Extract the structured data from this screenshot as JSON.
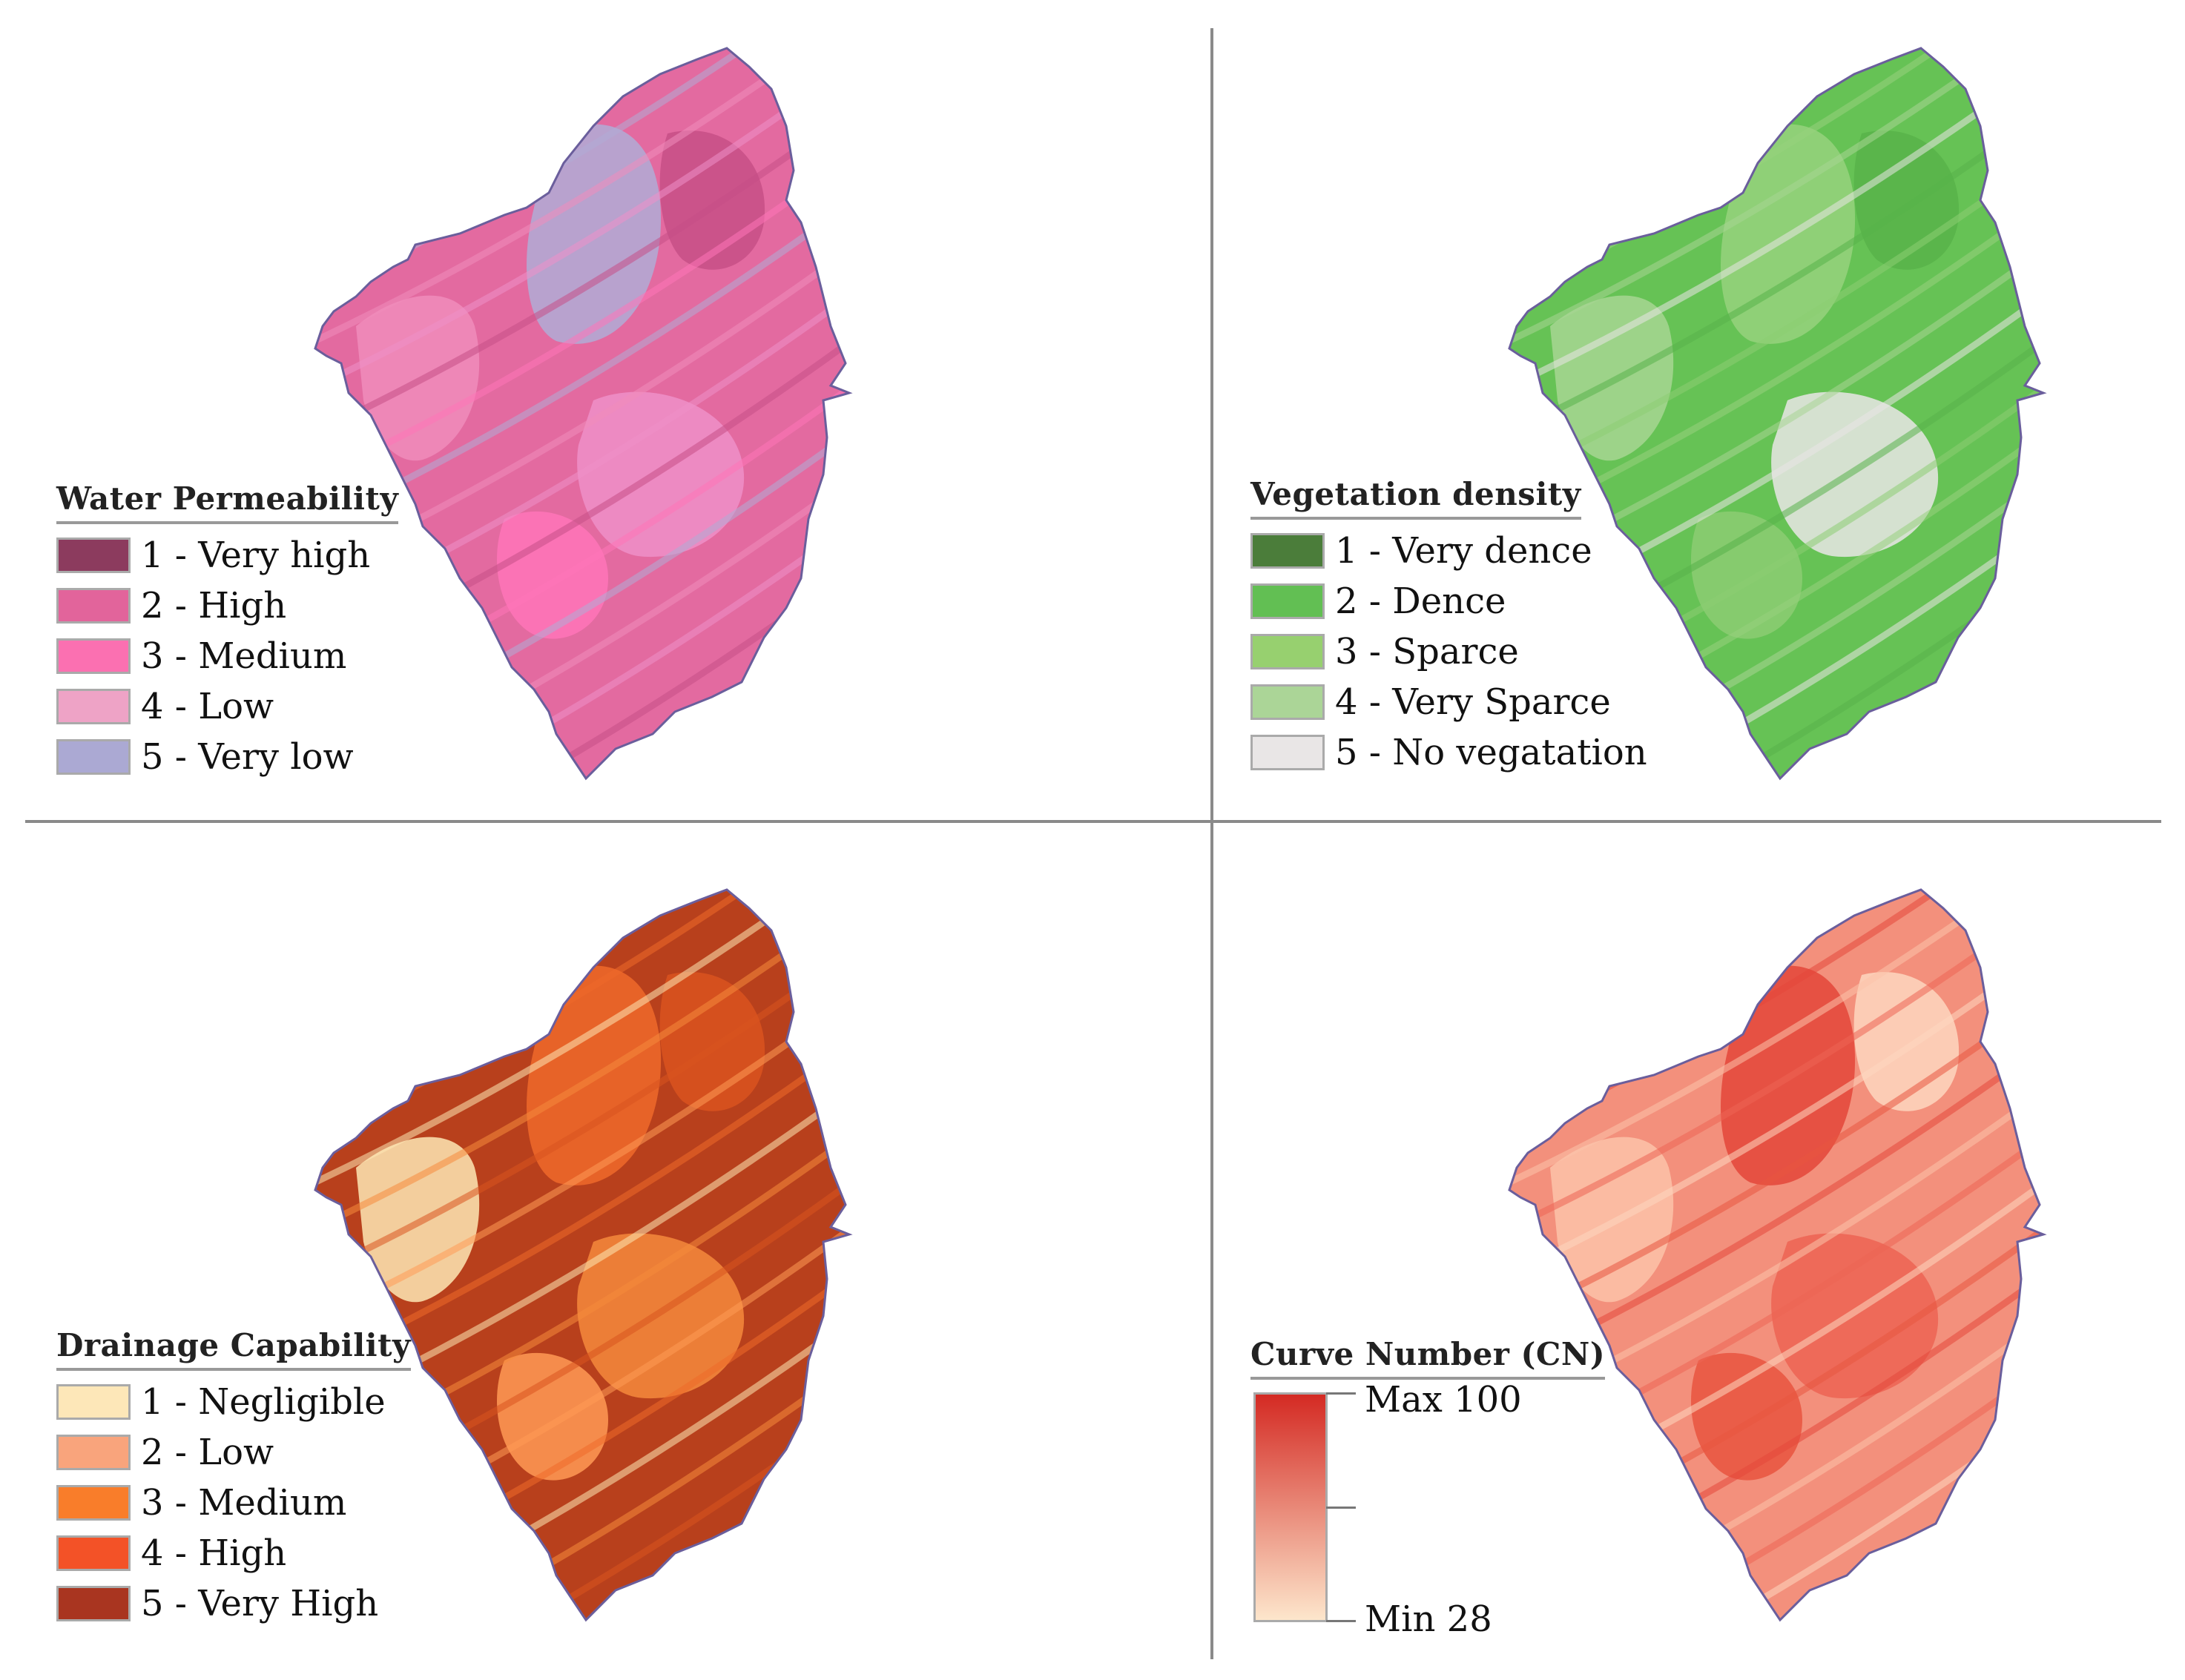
{
  "panels": [
    {
      "title": "Water Permeability",
      "fill": "#e36aa0",
      "patches": [
        "#b0abd6",
        "#f08cbb",
        "#ef8fc8",
        "#c74f86",
        "#ff74b8"
      ],
      "classes": [
        {
          "label": "1 - Very high",
          "color": "#8c3b5e"
        },
        {
          "label": "2 - High",
          "color": "#e2649b"
        },
        {
          "label": "3 - Medium",
          "color": "#fb70b1"
        },
        {
          "label": "4 - Low",
          "color": "#eea3c6"
        },
        {
          "label": "5 - Very low",
          "color": "#aba9d3"
        }
      ]
    },
    {
      "title": "Vegetation density",
      "fill": "#66c255",
      "patches": [
        "#97d27e",
        "#a7d693",
        "#e9e6e6",
        "#58b34a",
        "#8ccd73"
      ],
      "classes": [
        {
          "label": "1 - Very dence",
          "color": "#4b7d3a"
        },
        {
          "label": "2 - Dence",
          "color": "#62bf53"
        },
        {
          "label": "3 - Sparce",
          "color": "#97d06f"
        },
        {
          "label": "4 - Very Sparce",
          "color": "#abd597"
        },
        {
          "label": "5 - No vegatation",
          "color": "#e9e6e6"
        }
      ]
    },
    {
      "title": "Drainage Capability",
      "fill": "#b8401c",
      "patches": [
        "#ef6a2a",
        "#fde7b4",
        "#f58a3c",
        "#d9531f",
        "#ff9a55"
      ],
      "classes": [
        {
          "label": "1 - Negligible",
          "color": "#fde7b8"
        },
        {
          "label": "2 - Low",
          "color": "#f9a47c"
        },
        {
          "label": "3 - Medium",
          "color": "#f97d2a"
        },
        {
          "label": "4 - High",
          "color": "#f35227"
        },
        {
          "label": "5 - Very High",
          "color": "#a93520"
        }
      ]
    }
  ],
  "curve_number": {
    "title": "Curve Number (CN)",
    "fill": "#f3907c",
    "patches": [
      "#e3473a",
      "#fbc3a9",
      "#ec6453",
      "#fdd7c0",
      "#e8553f"
    ],
    "max_label": "Max 100",
    "min_label": "Min 28",
    "max_value": 100,
    "min_value": 28,
    "max_color": "#d42a23",
    "min_color": "#fde6cc"
  },
  "outline_color": "#6a5e9c",
  "divider_color": "#8a8a8a"
}
